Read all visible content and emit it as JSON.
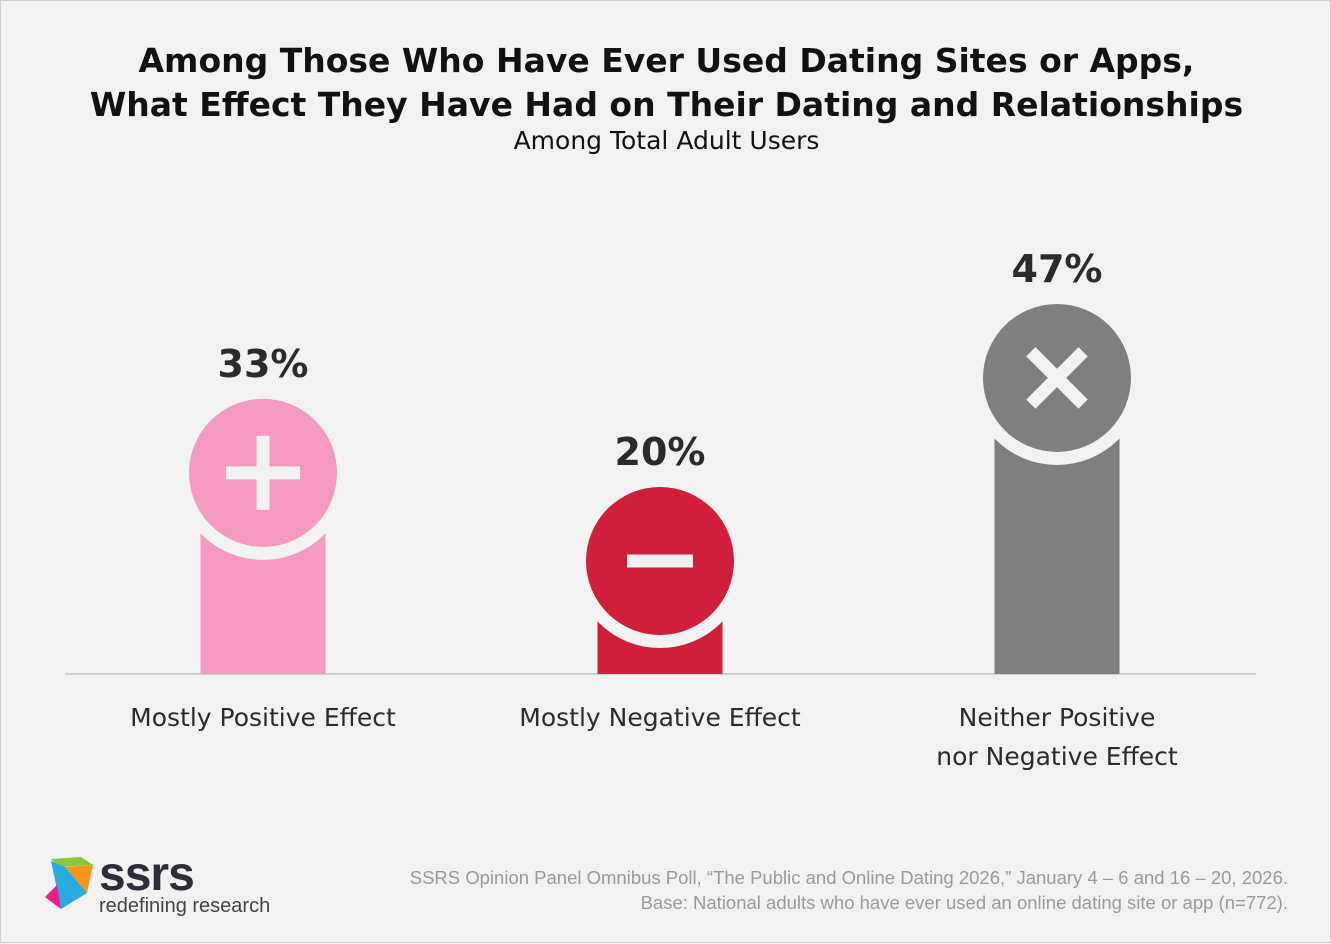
{
  "chart_data": {
    "type": "bar",
    "title": "Among Those Who Have Ever Used Dating Sites or Apps,\nWhat Effect They Have Had on Their Dating and Relationships",
    "title_lines": [
      "Among Those Who Have Ever Used Dating Sites or Apps,",
      "What Effect They Have Had on Their Dating and Relationships"
    ],
    "subtitle": "Among Total Adult Users",
    "categories": [
      [
        "Mostly Positive Effect"
      ],
      [
        "Mostly Negative Effect"
      ],
      [
        "Neither Positive",
        "nor Negative Effect"
      ]
    ],
    "values": [
      33,
      20,
      47
    ],
    "data_labels": [
      "33%",
      "20%",
      "47%"
    ],
    "colors": [
      "#f49ac1",
      "#cf1f3a",
      "#7f7f7f"
    ],
    "icons": [
      "plus-icon",
      "minus-icon",
      "x-icon"
    ],
    "grid": false
  },
  "footer": {
    "source": "SSRS Opinion Panel Omnibus Poll, “The Public and Online Dating 2026,” January 4 – 6 and 16 – 20, 2026.",
    "base": "Base: National adults who have ever used an online dating site or app (n=772)."
  },
  "logo": {
    "name": "ssrs",
    "tagline": "redefining research"
  }
}
